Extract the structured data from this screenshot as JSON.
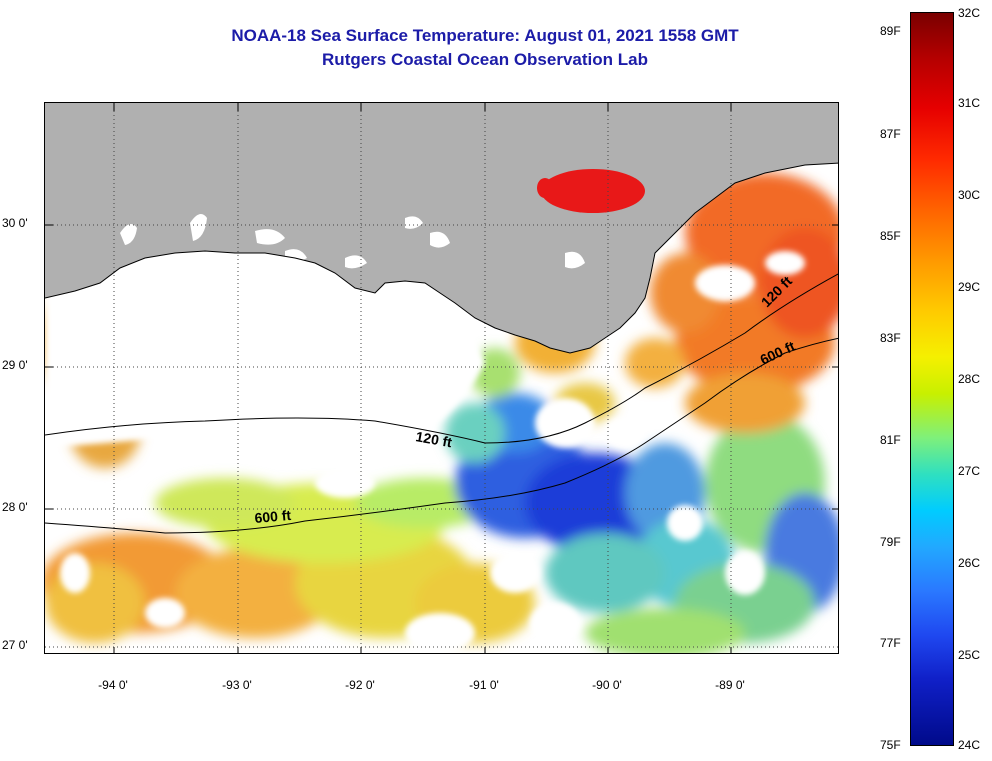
{
  "header": {
    "title": "NOAA-18 Sea Surface Temperature:  August 01, 2021 1558 GMT",
    "subtitle": "Rutgers Coastal Ocean Observation Lab"
  },
  "map": {
    "latitude_labels": [
      "30 0'",
      "29 0'",
      "28 0'",
      "27 0'"
    ],
    "longitude_labels": [
      "-94 0'",
      "-93 0'",
      "-92 0'",
      "-91 0'",
      "-90 0'",
      "-89 0'"
    ],
    "contour_labels": {
      "shelf_120_west": "120 ft",
      "shelf_120_east": "120 ft",
      "shelf_600_west": "600 ft",
      "shelf_600_east": "600 ft"
    },
    "colors": {
      "land": "#b0b0b0",
      "cloud": "#ffffff",
      "title": "#1c1ca8"
    }
  },
  "colorbar": {
    "celsius_labels": [
      "32C",
      "31C",
      "30C",
      "29C",
      "28C",
      "27C",
      "26C",
      "25C",
      "24C"
    ],
    "fahrenheit_labels": [
      "89F",
      "87F",
      "85F",
      "83F",
      "81F",
      "79F",
      "77F",
      "75F"
    ]
  }
}
